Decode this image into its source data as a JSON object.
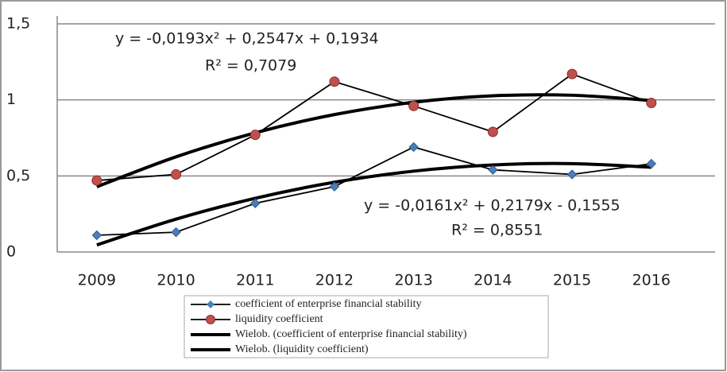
{
  "chart_data": {
    "type": "line",
    "categories": [
      "2009",
      "2010",
      "2011",
      "2012",
      "2013",
      "2014",
      "2015",
      "2016"
    ],
    "series": [
      {
        "name": "coefficient of enterprise financial stability",
        "color": "#4a7ebb",
        "marker": "diamond",
        "values": [
          0.11,
          0.13,
          0.32,
          0.43,
          0.69,
          0.54,
          0.51,
          0.58
        ]
      },
      {
        "name": "liquidity coefficient",
        "color": "#c0504d",
        "marker": "circle",
        "values": [
          0.47,
          0.51,
          0.77,
          1.12,
          0.96,
          0.79,
          1.17,
          0.98
        ]
      },
      {
        "name": "Wielob. (coefficient of enterprise financial stability)",
        "color": "#000000",
        "trend": true,
        "values": [
          0.0463,
          0.2159,
          0.3533,
          0.4585,
          0.5315,
          0.5723,
          0.5809,
          0.5573
        ]
      },
      {
        "name": "Wielob. (liquidity coefficient)",
        "color": "#000000",
        "trend": true,
        "values": [
          0.4288,
          0.6256,
          0.7838,
          0.9034,
          0.9844,
          1.0268,
          1.0306,
          0.9958
        ]
      }
    ],
    "annotations": [
      "y = -0,0193x² + 0,2547x + 0,1934",
      "R² = 0,7079",
      "y = -0,0161x² + 0,2179x - 0,1555",
      "R² = 0,8551"
    ],
    "ylim": [
      0,
      1.5
    ],
    "yticks": [
      0,
      {
        "value": 0.5,
        "label": "0,5"
      },
      1,
      {
        "value": 1.5,
        "label": "1,5"
      }
    ],
    "grid": true
  }
}
